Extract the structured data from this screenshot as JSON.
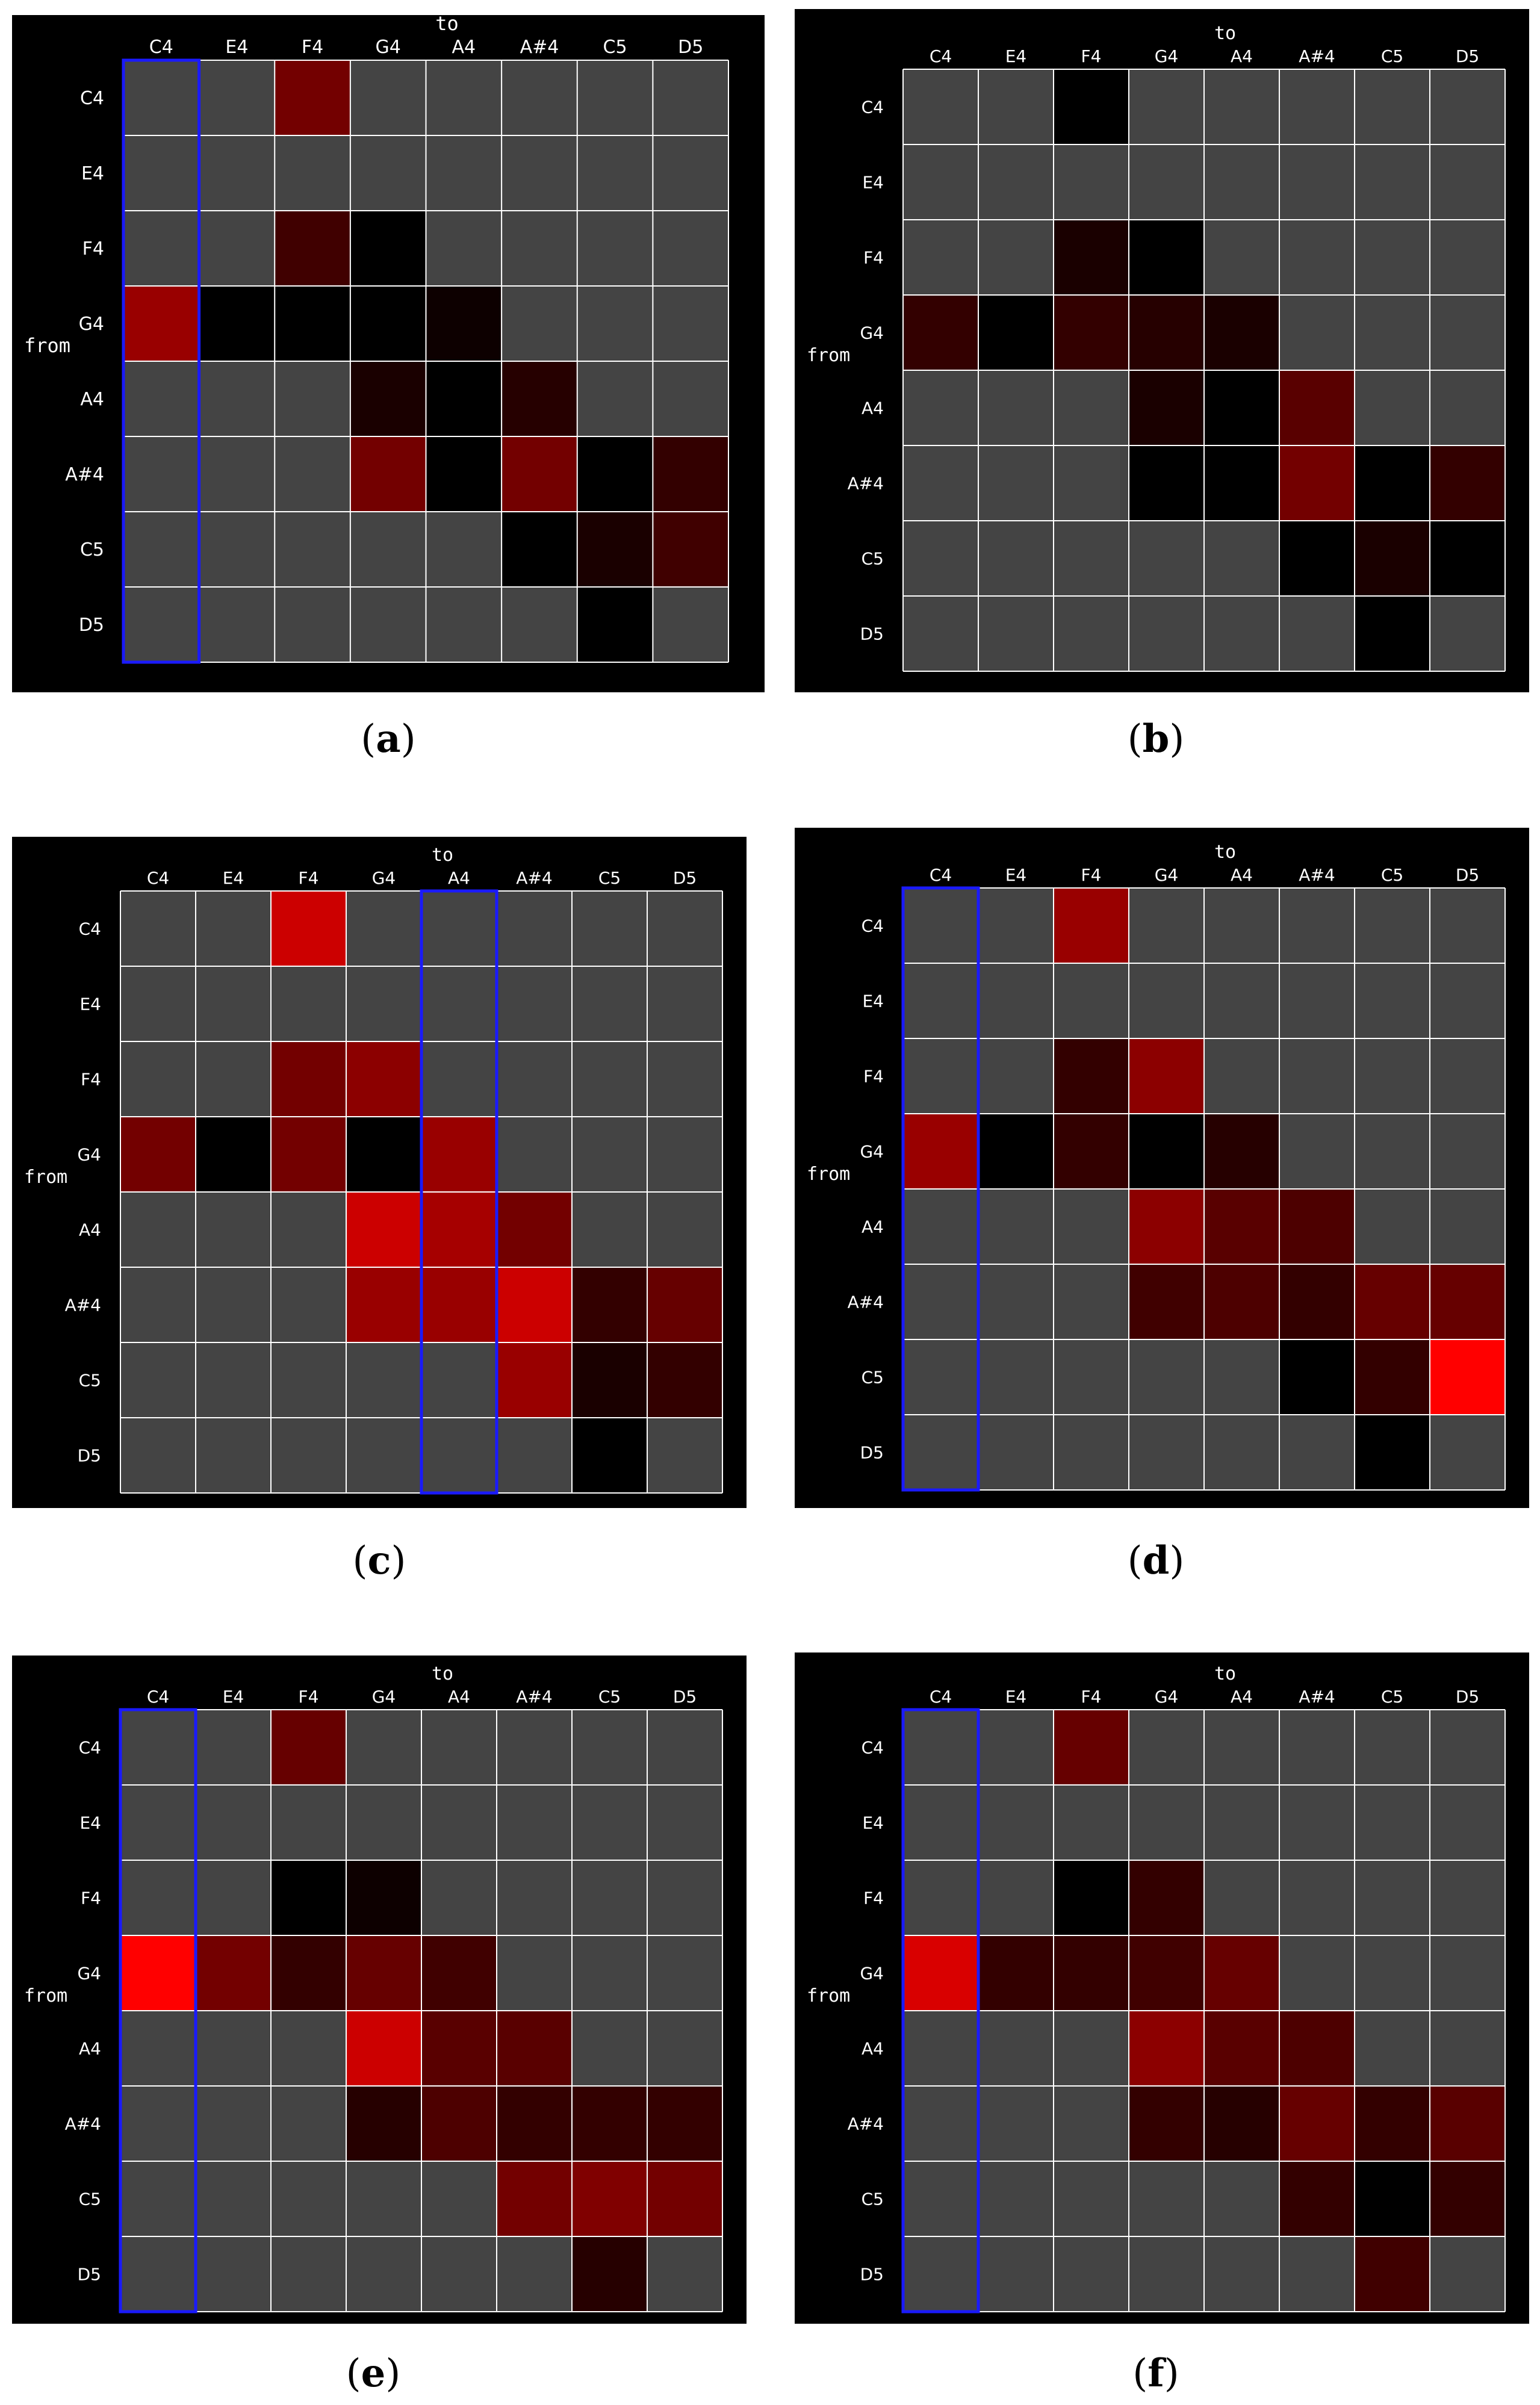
{
  "colors": {
    "background": "#000000",
    "empty_cell": "#444444",
    "grid_line": "#ffffff",
    "highlight_column_border": "#1a1aff",
    "heat_max": "#ff0000"
  },
  "shared": {
    "notes": [
      "C4",
      "E4",
      "F4",
      "G4",
      "A4",
      "A#4",
      "C5",
      "D5"
    ],
    "x_title": "to",
    "y_title": "from"
  },
  "chart_data": [
    {
      "type": "heatmap",
      "caption_letter": "a",
      "xlabel": "to",
      "ylabel": "from",
      "x_categories": [
        "C4",
        "E4",
        "F4",
        "G4",
        "A4",
        "A#4",
        "C5",
        "D5"
      ],
      "y_categories": [
        "C4",
        "E4",
        "F4",
        "G4",
        "A4",
        "A#4",
        "C5",
        "D5"
      ],
      "value_range": [
        0,
        1
      ],
      "empty_marker": null,
      "highlighted_column": "C4",
      "values": [
        [
          null,
          null,
          0.45,
          null,
          null,
          null,
          null,
          null
        ],
        [
          null,
          null,
          null,
          null,
          null,
          null,
          null,
          null
        ],
        [
          null,
          null,
          0.25,
          0.0,
          null,
          null,
          null,
          null
        ],
        [
          0.6,
          0.0,
          0.0,
          0.0,
          0.05,
          null,
          null,
          null
        ],
        [
          null,
          null,
          null,
          0.1,
          0.0,
          0.15,
          null,
          null
        ],
        [
          null,
          null,
          null,
          0.45,
          0.0,
          0.45,
          0.0,
          0.2
        ],
        [
          null,
          null,
          null,
          null,
          null,
          0.0,
          0.1,
          0.25
        ],
        [
          null,
          null,
          null,
          null,
          null,
          null,
          0.0,
          null
        ]
      ]
    },
    {
      "type": "heatmap",
      "caption_letter": "b",
      "xlabel": "to",
      "ylabel": "from",
      "x_categories": [
        "C4",
        "E4",
        "F4",
        "G4",
        "A4",
        "A#4",
        "C5",
        "D5"
      ],
      "y_categories": [
        "C4",
        "E4",
        "F4",
        "G4",
        "A4",
        "A#4",
        "C5",
        "D5"
      ],
      "value_range": [
        0,
        1
      ],
      "empty_marker": null,
      "highlighted_column": null,
      "values": [
        [
          null,
          null,
          0.0,
          null,
          null,
          null,
          null,
          null
        ],
        [
          null,
          null,
          null,
          null,
          null,
          null,
          null,
          null
        ],
        [
          null,
          null,
          0.1,
          0.0,
          null,
          null,
          null,
          null
        ],
        [
          0.2,
          0.0,
          0.2,
          0.15,
          0.1,
          null,
          null,
          null
        ],
        [
          null,
          null,
          null,
          0.1,
          0.0,
          0.35,
          null,
          null
        ],
        [
          null,
          null,
          null,
          0.0,
          0.0,
          0.45,
          0.0,
          0.2
        ],
        [
          null,
          null,
          null,
          null,
          null,
          0.0,
          0.1,
          0.0
        ],
        [
          null,
          null,
          null,
          null,
          null,
          null,
          0.0,
          null
        ]
      ]
    },
    {
      "type": "heatmap",
      "caption_letter": "c",
      "xlabel": "to",
      "ylabel": "from",
      "x_categories": [
        "C4",
        "E4",
        "F4",
        "G4",
        "A4",
        "A#4",
        "C5",
        "D5"
      ],
      "y_categories": [
        "C4",
        "E4",
        "F4",
        "G4",
        "A4",
        "A#4",
        "C5",
        "D5"
      ],
      "value_range": [
        0,
        1
      ],
      "empty_marker": null,
      "highlighted_column": "A4",
      "values": [
        [
          null,
          null,
          0.8,
          null,
          null,
          null,
          null,
          null
        ],
        [
          null,
          null,
          null,
          null,
          null,
          null,
          null,
          null
        ],
        [
          null,
          null,
          0.45,
          0.55,
          null,
          null,
          null,
          null
        ],
        [
          0.45,
          0.0,
          0.45,
          0.0,
          0.6,
          null,
          null,
          null
        ],
        [
          null,
          null,
          null,
          0.8,
          0.65,
          0.45,
          null,
          null
        ],
        [
          null,
          null,
          null,
          0.6,
          0.6,
          0.8,
          0.2,
          0.4
        ],
        [
          null,
          null,
          null,
          null,
          null,
          0.6,
          0.1,
          0.2
        ],
        [
          null,
          null,
          null,
          null,
          null,
          null,
          0.0,
          null
        ]
      ]
    },
    {
      "type": "heatmap",
      "caption_letter": "d",
      "xlabel": "to",
      "ylabel": "from",
      "x_categories": [
        "C4",
        "E4",
        "F4",
        "G4",
        "A4",
        "A#4",
        "C5",
        "D5"
      ],
      "y_categories": [
        "C4",
        "E4",
        "F4",
        "G4",
        "A4",
        "A#4",
        "C5",
        "D5"
      ],
      "value_range": [
        0,
        1
      ],
      "empty_marker": null,
      "highlighted_column": "C4",
      "values": [
        [
          null,
          null,
          0.6,
          null,
          null,
          null,
          null,
          null
        ],
        [
          null,
          null,
          null,
          null,
          null,
          null,
          null,
          null
        ],
        [
          null,
          null,
          0.2,
          0.55,
          null,
          null,
          null,
          null
        ],
        [
          0.6,
          0.0,
          0.2,
          0.0,
          0.15,
          null,
          null,
          null
        ],
        [
          null,
          null,
          null,
          0.55,
          0.35,
          0.3,
          null,
          null
        ],
        [
          null,
          null,
          null,
          0.25,
          0.3,
          0.2,
          0.4,
          0.4
        ],
        [
          null,
          null,
          null,
          null,
          null,
          0.0,
          0.2,
          1.0
        ],
        [
          null,
          null,
          null,
          null,
          null,
          null,
          0.0,
          null
        ]
      ]
    },
    {
      "type": "heatmap",
      "caption_letter": "e",
      "xlabel": "to",
      "ylabel": "from",
      "x_categories": [
        "C4",
        "E4",
        "F4",
        "G4",
        "A4",
        "A#4",
        "C5",
        "D5"
      ],
      "y_categories": [
        "C4",
        "E4",
        "F4",
        "G4",
        "A4",
        "A#4",
        "C5",
        "D5"
      ],
      "value_range": [
        0,
        1
      ],
      "empty_marker": null,
      "highlighted_column": "C4",
      "values": [
        [
          null,
          null,
          0.4,
          null,
          null,
          null,
          null,
          null
        ],
        [
          null,
          null,
          null,
          null,
          null,
          null,
          null,
          null
        ],
        [
          null,
          null,
          0.0,
          0.05,
          null,
          null,
          null,
          null
        ],
        [
          1.0,
          0.45,
          0.2,
          0.4,
          0.25,
          null,
          null,
          null
        ],
        [
          null,
          null,
          null,
          0.8,
          0.35,
          0.35,
          null,
          null
        ],
        [
          null,
          null,
          null,
          0.15,
          0.3,
          0.2,
          0.2,
          0.2
        ],
        [
          null,
          null,
          null,
          null,
          null,
          0.45,
          0.5,
          0.45
        ],
        [
          null,
          null,
          null,
          null,
          null,
          null,
          0.15,
          null
        ]
      ]
    },
    {
      "type": "heatmap",
      "caption_letter": "f",
      "xlabel": "to",
      "ylabel": "from",
      "x_categories": [
        "C4",
        "E4",
        "F4",
        "G4",
        "A4",
        "A#4",
        "C5",
        "D5"
      ],
      "y_categories": [
        "C4",
        "E4",
        "F4",
        "G4",
        "A4",
        "A#4",
        "C5",
        "D5"
      ],
      "value_range": [
        0,
        1
      ],
      "empty_marker": null,
      "highlighted_column": "C4",
      "values": [
        [
          null,
          null,
          0.4,
          null,
          null,
          null,
          null,
          null
        ],
        [
          null,
          null,
          null,
          null,
          null,
          null,
          null,
          null
        ],
        [
          null,
          null,
          0.0,
          0.2,
          null,
          null,
          null,
          null
        ],
        [
          0.85,
          0.2,
          0.2,
          0.25,
          0.4,
          null,
          null,
          null
        ],
        [
          null,
          null,
          null,
          0.55,
          0.35,
          0.3,
          null,
          null
        ],
        [
          null,
          null,
          null,
          0.2,
          0.15,
          0.4,
          0.2,
          0.35
        ],
        [
          null,
          null,
          null,
          null,
          null,
          0.2,
          0.0,
          0.2
        ],
        [
          null,
          null,
          null,
          null,
          null,
          null,
          0.25,
          null
        ]
      ]
    }
  ]
}
